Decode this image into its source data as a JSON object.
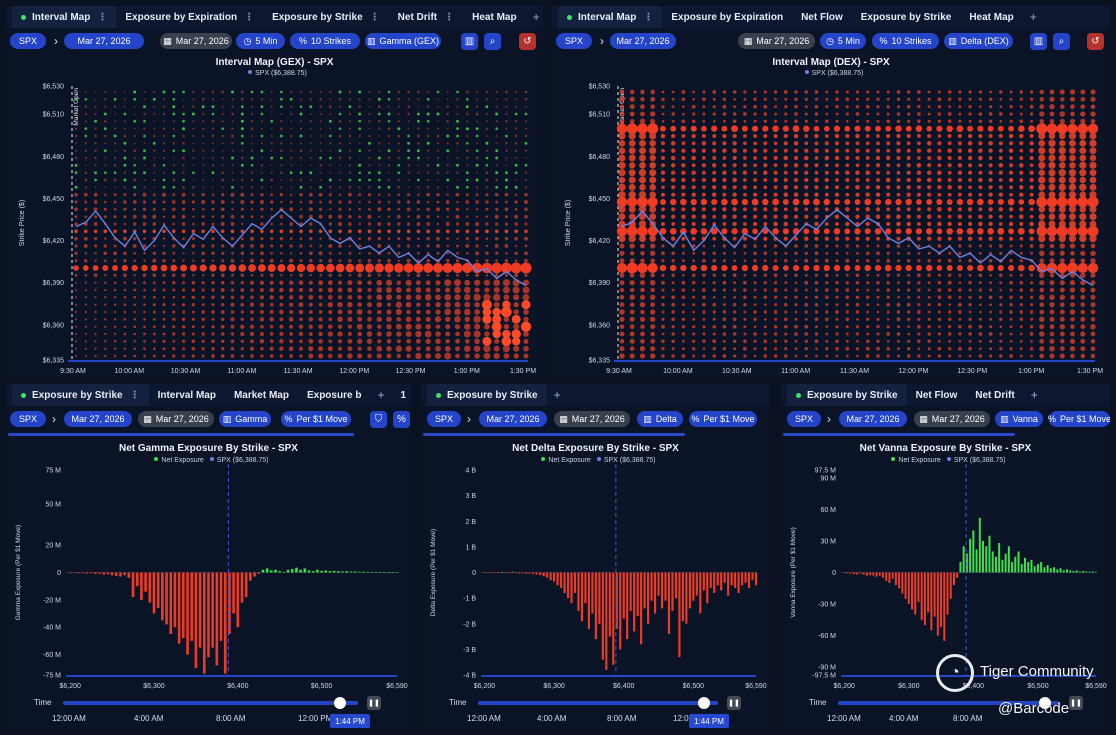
{
  "panels": [
    {
      "tabs": [
        {
          "label": "Interval Map",
          "active": true,
          "dot": true,
          "kebab": true
        },
        {
          "label": "Exposure by Expiration",
          "kebab": true
        },
        {
          "label": "Exposure by Strike",
          "kebab": true
        },
        {
          "label": "Net Drift",
          "kebab": true
        },
        {
          "label": "Heat Map",
          "kebab": false
        }
      ],
      "plus": "+",
      "chips": {
        "ticker": "SPX",
        "date": "Mar 27, 2026",
        "date2": "Mar 27, 2026",
        "interval": "5 Min",
        "strikes": "10 Strikes",
        "greek": "Gamma (GEX)"
      }
    },
    {
      "tabs": [
        {
          "label": "Interval Map",
          "active": true,
          "dot": true,
          "kebab": true
        },
        {
          "label": "Exposure by Expiration",
          "kebab": false
        },
        {
          "label": "Net Flow",
          "kebab": false
        },
        {
          "label": "Exposure by Strike",
          "kebab": false
        },
        {
          "label": "Heat Map",
          "kebab": false
        }
      ],
      "plus": "+",
      "chips": {
        "ticker": "SPX",
        "date": "Mar 27, 2026",
        "date2": "Mar 27, 2026",
        "interval": "5 Min",
        "strikes": "10 Strikes",
        "greek": "Delta (DEX)"
      }
    },
    {
      "tabs": [
        {
          "label": "Exposure by Strike",
          "active": true,
          "dot": true,
          "kebab": true
        },
        {
          "label": "Interval Map",
          "kebab": false
        },
        {
          "label": "Market Map",
          "kebab": false
        },
        {
          "label": "Exposure b",
          "kebab": false
        }
      ],
      "plus": "+",
      "extra": "1",
      "chips": {
        "ticker": "SPX",
        "date": "Mar 27, 2026",
        "date2": "Mar 27, 2026",
        "greek": "Gamma",
        "move": "Per $1 Move"
      }
    },
    {
      "tabs": [
        {
          "label": "Exposure by Strike",
          "active": true,
          "dot": true,
          "kebab": false
        }
      ],
      "plus": "+",
      "chips": {
        "ticker": "SPX",
        "date": "Mar 27, 2026",
        "date2": "Mar 27, 2026",
        "greek": "Delta",
        "move": "Per $1 Move"
      }
    },
    {
      "tabs": [
        {
          "label": "Exposure by Strike",
          "active": true,
          "dot": true,
          "kebab": false
        },
        {
          "label": "Net Flow",
          "kebab": false
        },
        {
          "label": "Net Drift",
          "kebab": false
        }
      ],
      "plus": "+",
      "chips": {
        "ticker": "SPX",
        "date": "Mar 27, 2026",
        "date2": "Mar 27, 2026",
        "greek": "Vanna",
        "move": "Per $1 Move"
      }
    }
  ],
  "timebar": {
    "label": "Time",
    "ticks": [
      "12:00 AM",
      "4:00 AM",
      "8:00 AM",
      "12:00 PM"
    ],
    "current": "1:44 PM",
    "value_fraction": 0.94
  },
  "watermark": {
    "brand": "Tiger Community",
    "handle": "@Barcode"
  },
  "colors": {
    "accent": "#2444c9",
    "negative": "#ee3b24",
    "positive": "#3ee04a",
    "price_line": "#6f7fe0"
  },
  "chart_data": [
    {
      "type": "scatter",
      "title": "Interval Map (GEX) - SPX",
      "legend": [
        "SPX ($6,388.75)"
      ],
      "ylabel": "Strike Price ($)",
      "y_ticks": [
        "$6,530",
        "$6,510",
        "$6,480",
        "$6,450",
        "$6,420",
        "$6,390",
        "$6,360",
        "$6,335"
      ],
      "ylim": [
        6335,
        6530
      ],
      "x_ticks": [
        "9:30 AM",
        "10:00 AM",
        "10:30 AM",
        "11:00 AM",
        "11:30 AM",
        "12:00 PM",
        "12:30 PM",
        "1:00 PM",
        "1:30 PM"
      ],
      "annotation": "Market Open",
      "price_series": [
        6430,
        6433,
        6441,
        6432,
        6422,
        6416,
        6426,
        6413,
        6420,
        6431,
        6422,
        6415,
        6425,
        6421,
        6430,
        6422,
        6416,
        6424,
        6432,
        6428,
        6436,
        6442,
        6436,
        6430,
        6436,
        6432,
        6422,
        6418,
        6422,
        6414,
        6416,
        6411,
        6416,
        6408,
        6411,
        6404,
        6410,
        6405,
        6413,
        6408,
        6406,
        6398,
        6400,
        6393,
        6398,
        6392,
        6388
      ],
      "highlight_strikes": [
        6400,
        6425
      ],
      "color_scale": "negative exposure (red), positive exposure (green); dot size = magnitude"
    },
    {
      "type": "scatter",
      "title": "Interval Map (DEX) - SPX",
      "legend": [
        "SPX ($6,388.75)"
      ],
      "ylabel": "Strike Price ($)",
      "y_ticks": [
        "$6,530",
        "$6,510",
        "$6,480",
        "$6,450",
        "$6,420",
        "$6,390",
        "$6,360",
        "$6,335"
      ],
      "ylim": [
        6335,
        6530
      ],
      "x_ticks": [
        "9:30 AM",
        "10:00 AM",
        "10:30 AM",
        "11:00 AM",
        "11:30 AM",
        "12:00 PM",
        "12:30 PM",
        "1:00 PM",
        "1:30 PM"
      ],
      "annotation": "Market Open",
      "price_series": [
        6430,
        6433,
        6441,
        6432,
        6422,
        6416,
        6426,
        6413,
        6420,
        6431,
        6422,
        6415,
        6425,
        6421,
        6430,
        6422,
        6416,
        6424,
        6432,
        6428,
        6436,
        6442,
        6436,
        6430,
        6436,
        6432,
        6422,
        6418,
        6422,
        6414,
        6416,
        6411,
        6416,
        6408,
        6411,
        6404,
        6410,
        6405,
        6413,
        6408,
        6406,
        6398,
        6400,
        6393,
        6398,
        6392,
        6388
      ],
      "highlight_strikes": [
        6400,
        6425,
        6450,
        6500
      ],
      "color_scale": "negative exposure (red); dot size = magnitude"
    },
    {
      "type": "bar",
      "title": "Net Gamma Exposure By Strike - SPX",
      "legend": [
        "Net Exposure",
        "SPX ($6,388.75)"
      ],
      "ylabel": "Gamma Exposure (Per $1 Move)",
      "y_ticks": [
        "75 M",
        "50 M",
        "20 M",
        "0",
        "-20 M",
        "-40 M",
        "-60 M",
        "-75 M"
      ],
      "y_tick_values": [
        75,
        50,
        20,
        0,
        -20,
        -40,
        -60,
        -75
      ],
      "ylim": [
        -75,
        75
      ],
      "x_ticks": [
        "$6,200",
        "$6,300",
        "$6,400",
        "$6,500",
        "$6,590"
      ],
      "xlim": [
        6195,
        6590
      ],
      "spot": 6388.75,
      "strike_start": 6200,
      "strike_step": 5,
      "values": [
        -0.5,
        -0.4,
        -0.6,
        -0.5,
        -0.8,
        -0.6,
        -1,
        -0.9,
        -1.5,
        -1.2,
        -2,
        -2.5,
        -3,
        -2,
        -4,
        -18,
        -10,
        -20,
        -14,
        -22,
        -30,
        -26,
        -35,
        -38,
        -45,
        -40,
        -52,
        -48,
        -60,
        -50,
        -70,
        -55,
        -74,
        -62,
        -55,
        -68,
        -50,
        -74,
        -45,
        -30,
        -40,
        -22,
        -18,
        -6,
        -3,
        -1,
        2,
        3,
        1.5,
        2,
        1,
        0.5,
        2,
        2.5,
        3.5,
        2,
        3,
        1.5,
        1,
        2,
        1.2,
        1.5,
        1,
        1.2,
        1,
        0.8,
        1,
        0.7,
        0.8,
        0.5,
        0.6,
        0.5,
        0.4,
        0.5,
        0.3,
        0.3,
        0.2,
        0.2,
        0.2
      ]
    },
    {
      "type": "bar",
      "title": "Net Delta Exposure By Strike - SPX",
      "legend": [
        "Net Exposure",
        "SPX ($6,388.75)"
      ],
      "ylabel": "Delta Exposure (Per $1 Move)",
      "y_ticks": [
        "4 B",
        "3 B",
        "2 B",
        "1 B",
        "0",
        "-1 B",
        "-2 B",
        "-3 B",
        "-4 B"
      ],
      "y_tick_values": [
        4,
        3,
        2,
        1,
        0,
        -1,
        -2,
        -3,
        -4
      ],
      "ylim": [
        -4,
        4
      ],
      "x_ticks": [
        "$6,200",
        "$6,300",
        "$6,400",
        "$6,500",
        "$6,590"
      ],
      "xlim": [
        6195,
        6590
      ],
      "spot": 6388.75,
      "strike_start": 6200,
      "strike_step": 5,
      "values": [
        -0.01,
        -0.01,
        -0.02,
        -0.01,
        -0.02,
        0.02,
        -0.02,
        -0.03,
        0.03,
        -0.02,
        -0.04,
        -0.03,
        -0.05,
        -0.04,
        -0.06,
        -0.08,
        -0.1,
        -0.15,
        -0.2,
        -0.3,
        -0.35,
        -0.5,
        -0.6,
        -0.8,
        -1.0,
        -1.2,
        -0.8,
        -1.5,
        -1.9,
        -1.2,
        -2.2,
        -1.6,
        -2.6,
        -2.0,
        -3.4,
        -3.8,
        -2.5,
        -3.6,
        -2.2,
        -3.0,
        -1.8,
        -2.6,
        -1.5,
        -2.3,
        -1.7,
        -2.8,
        -1.4,
        -2.0,
        -1.1,
        -1.6,
        -0.9,
        -1.4,
        -1.1,
        -2.4,
        -1.5,
        -1.0,
        -3.3,
        -1.9,
        -2.0,
        -1.4,
        -1.1,
        -0.9,
        -1.6,
        -0.7,
        -1.2,
        -0.6,
        -0.8,
        -0.5,
        -0.7,
        -0.4,
        -0.9,
        -0.5,
        -0.6,
        -0.8,
        -0.5,
        -0.4,
        -0.6,
        -0.3,
        -0.5
      ]
    },
    {
      "type": "bar",
      "title": "Net Vanna Exposure By Strike - SPX",
      "legend": [
        "Net Exposure",
        "SPX ($6,388.75)"
      ],
      "ylabel": "Vanna Exposure (Per $1 Move)",
      "y_ticks": [
        "97.5 M",
        "90 M",
        "60 M",
        "30 M",
        "0",
        "-30 M",
        "-60 M",
        "-90 M",
        "-97.5 M"
      ],
      "y_tick_values": [
        97.5,
        90,
        60,
        30,
        0,
        -30,
        -60,
        -90,
        -97.5
      ],
      "ylim": [
        -97.5,
        97.5
      ],
      "x_ticks": [
        "$6,200",
        "$6,300",
        "$6,400",
        "$6,500",
        "$6,590"
      ],
      "xlim": [
        6195,
        6590
      ],
      "spot": 6388.75,
      "strike_start": 6200,
      "strike_step": 5,
      "values": [
        -0.5,
        -0.8,
        -1,
        -1.5,
        -2,
        -1,
        -2,
        -3,
        -2.5,
        -3,
        -4,
        -3,
        -5,
        -8,
        -10,
        -6,
        -12,
        -15,
        -20,
        -25,
        -30,
        -35,
        -40,
        -28,
        -45,
        -50,
        -38,
        -55,
        -42,
        -60,
        -52,
        -65,
        -40,
        -25,
        -12,
        -5,
        10,
        25,
        18,
        32,
        40,
        22,
        52,
        30,
        25,
        35,
        20,
        15,
        28,
        12,
        18,
        25,
        10,
        15,
        20,
        8,
        14,
        10,
        12,
        6,
        8,
        10,
        5,
        7,
        4,
        5,
        3,
        4,
        2,
        3,
        2,
        1.5,
        2,
        1,
        1.5,
        1,
        0.8,
        1,
        0.5
      ]
    }
  ]
}
